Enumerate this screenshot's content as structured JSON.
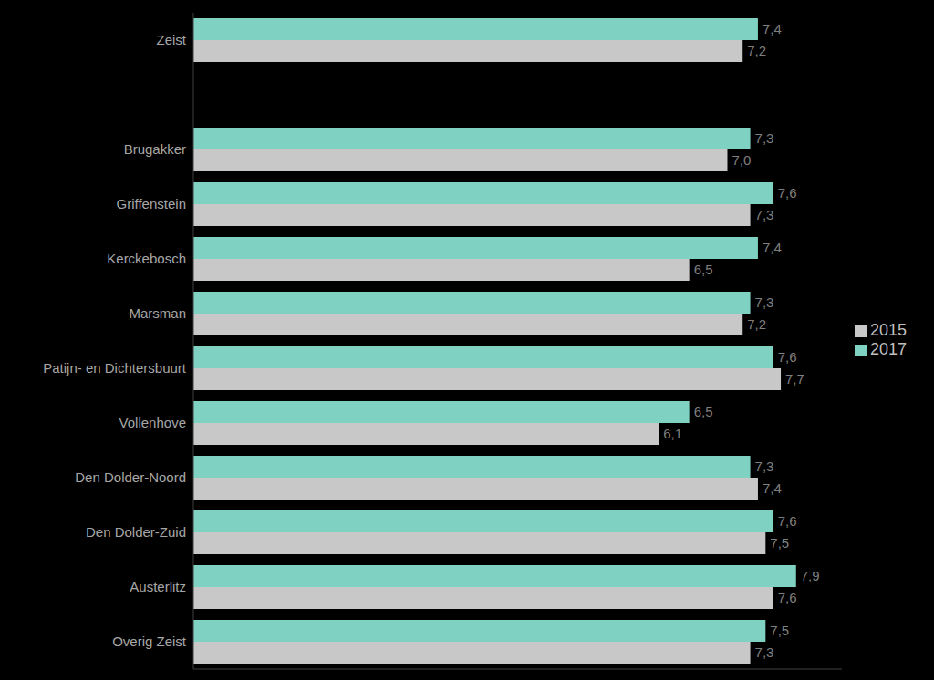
{
  "chart_data": {
    "type": "bar",
    "orientation": "horizontal",
    "categories": [
      "Zeist",
      null,
      "Brugakker",
      "Griffenstein",
      "Kerckebosch",
      "Marsman",
      "Patijn- en Dichtersbuurt",
      "Vollenhove",
      "Den Dolder-Noord",
      "Den Dolder-Zuid",
      "Austerlitz",
      "Overig Zeist"
    ],
    "series": [
      {
        "name": "2017",
        "color": "#7fd1c1",
        "values": [
          7.4,
          null,
          7.3,
          7.6,
          7.4,
          7.3,
          7.6,
          6.5,
          7.3,
          7.6,
          7.9,
          7.5
        ],
        "value_labels": [
          "7,4",
          null,
          "7,3",
          "7,6",
          "7,4",
          "7,3",
          "7,6",
          "6,5",
          "7,3",
          "7,6",
          "7,9",
          "7,5"
        ]
      },
      {
        "name": "2015",
        "color": "#c8c8c8",
        "values": [
          7.2,
          null,
          7.0,
          7.3,
          6.5,
          7.2,
          7.7,
          6.1,
          7.4,
          7.5,
          7.6,
          7.3
        ],
        "value_labels": [
          "7,2",
          null,
          "7,0",
          "7,3",
          "6,5",
          "7,2",
          "7,7",
          "6,1",
          "7,4",
          "7,5",
          "7,6",
          "7,3"
        ]
      }
    ],
    "xlim": [
      0,
      8.5
    ],
    "data_labels": true,
    "tick_labels": "y",
    "legend": "right"
  }
}
